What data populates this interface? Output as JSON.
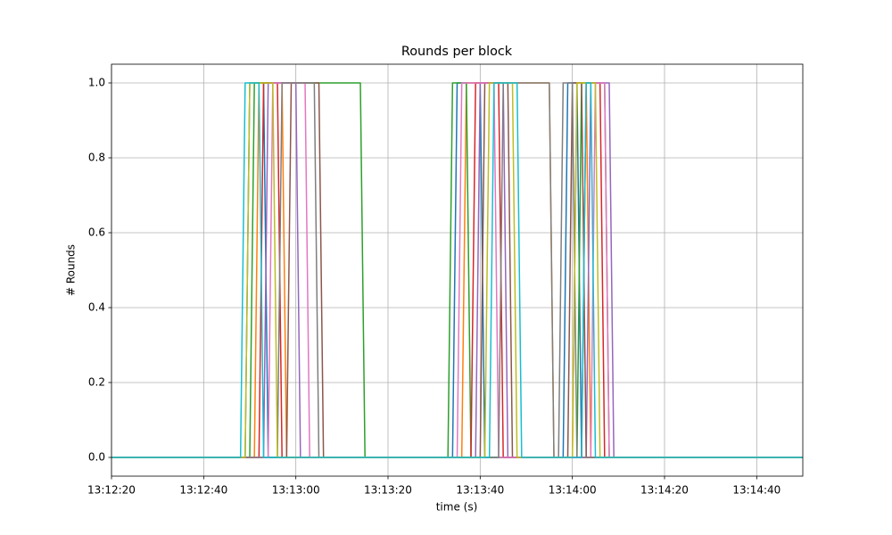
{
  "chart_data": {
    "type": "line",
    "title": "Rounds per block",
    "x_label": "time (s)",
    "y_label": "# Rounds",
    "xlim": [
      "13:12:20",
      "13:14:50"
    ],
    "xticks": [
      "13:12:20",
      "13:12:40",
      "13:13:00",
      "13:13:20",
      "13:13:40",
      "13:14:00",
      "13:14:20",
      "13:14:40"
    ],
    "ylim": [
      -0.05,
      1.05
    ],
    "yticks": [
      {
        "value": 0,
        "label": "0.0"
      },
      0.2,
      0.4,
      0.6,
      0.8,
      {
        "value": 1,
        "label": "1.0"
      }
    ],
    "grid": true,
    "series": [
      {
        "color": "#1f77b4",
        "x": [
          "13:12:20",
          "13:12:49",
          "13:12:50",
          "13:12:53",
          "13:12:54",
          "13:13:34",
          "13:13:35",
          "13:13:40",
          "13:13:41",
          "13:13:58",
          "13:13:59",
          "13:14:01",
          "13:14:02",
          "13:14:50"
        ],
        "values": [
          0,
          0,
          1,
          1,
          0,
          0,
          1,
          1,
          0,
          0,
          1,
          1,
          0,
          0
        ]
      },
      {
        "color": "#ff7f0e",
        "x": [
          "13:12:20",
          "13:12:51",
          "13:12:52",
          "13:12:57",
          "13:12:58",
          "13:13:36",
          "13:13:37",
          "13:13:55",
          "13:13:56",
          "13:14:00",
          "13:14:01",
          "13:14:03",
          "13:14:04",
          "13:14:50"
        ],
        "values": [
          0,
          0,
          1,
          1,
          0,
          0,
          1,
          1,
          0,
          0,
          1,
          1,
          0,
          0
        ]
      },
      {
        "color": "#2ca02c",
        "x": [
          "13:12:20",
          "13:12:50",
          "13:12:51",
          "13:13:14",
          "13:13:15",
          "13:13:33",
          "13:13:34",
          "13:13:37",
          "13:13:38",
          "13:14:01",
          "13:14:02",
          "13:14:07",
          "13:14:08",
          "13:14:50"
        ],
        "values": [
          0,
          0,
          1,
          1,
          0,
          0,
          1,
          1,
          0,
          0,
          1,
          1,
          0,
          0
        ]
      },
      {
        "color": "#d62728",
        "x": [
          "13:12:20",
          "13:12:52",
          "13:12:53",
          "13:12:56",
          "13:12:57",
          "13:13:38",
          "13:13:39",
          "13:13:44",
          "13:13:45",
          "13:14:02",
          "13:14:03",
          "13:14:06",
          "13:14:07",
          "13:14:50"
        ],
        "values": [
          0,
          0,
          1,
          1,
          0,
          0,
          1,
          1,
          0,
          0,
          1,
          1,
          0,
          0
        ]
      },
      {
        "color": "#9467bd",
        "x": [
          "13:12:20",
          "13:12:53",
          "13:12:54",
          "13:13:00",
          "13:13:01",
          "13:13:39",
          "13:13:40",
          "13:13:45",
          "13:13:46",
          "13:14:03",
          "13:14:04",
          "13:14:08",
          "13:14:09",
          "13:14:50"
        ],
        "values": [
          0,
          0,
          1,
          1,
          0,
          0,
          1,
          1,
          0,
          0,
          1,
          1,
          0,
          0
        ]
      },
      {
        "color": "#8c564b",
        "x": [
          "13:12:20",
          "13:12:58",
          "13:12:59",
          "13:13:05",
          "13:13:06",
          "13:13:40",
          "13:13:41",
          "13:13:46",
          "13:13:47",
          "13:13:59",
          "13:14:00",
          "13:14:02",
          "13:14:03",
          "13:14:50"
        ],
        "values": [
          0,
          0,
          1,
          1,
          0,
          0,
          1,
          1,
          0,
          0,
          1,
          1,
          0,
          0
        ]
      },
      {
        "color": "#e377c2",
        "x": [
          "13:12:20",
          "13:12:54",
          "13:12:55",
          "13:13:02",
          "13:13:03",
          "13:13:35",
          "13:13:36",
          "13:13:43",
          "13:13:44",
          "13:14:04",
          "13:14:05",
          "13:14:07",
          "13:14:08",
          "13:14:50"
        ],
        "values": [
          0,
          0,
          1,
          1,
          0,
          0,
          1,
          1,
          0,
          0,
          1,
          1,
          0,
          0
        ]
      },
      {
        "color": "#7f7f7f",
        "x": [
          "13:12:20",
          "13:12:56",
          "13:12:57",
          "13:13:04",
          "13:13:05",
          "13:13:44",
          "13:13:45",
          "13:13:55",
          "13:13:56",
          "13:13:57",
          "13:13:58",
          "13:14:00",
          "13:14:01",
          "13:14:50"
        ],
        "values": [
          0,
          0,
          1,
          1,
          0,
          0,
          1,
          1,
          0,
          0,
          1,
          1,
          0,
          0
        ]
      },
      {
        "color": "#bcbd22",
        "x": [
          "13:12:20",
          "13:12:49",
          "13:12:50",
          "13:12:55",
          "13:12:56",
          "13:13:41",
          "13:13:42",
          "13:13:47",
          "13:13:48",
          "13:14:00",
          "13:14:01",
          "13:14:05",
          "13:14:06",
          "13:14:50"
        ],
        "values": [
          0,
          0,
          1,
          1,
          0,
          0,
          1,
          1,
          0,
          0,
          1,
          1,
          0,
          0
        ]
      },
      {
        "color": "#17becf",
        "x": [
          "13:12:20",
          "13:12:48",
          "13:12:49",
          "13:12:52",
          "13:12:53",
          "13:13:42",
          "13:13:43",
          "13:13:48",
          "13:13:49",
          "13:14:02",
          "13:14:03",
          "13:14:04",
          "13:14:05",
          "13:14:50"
        ],
        "values": [
          0,
          0,
          1,
          1,
          0,
          0,
          1,
          1,
          0,
          0,
          1,
          1,
          0,
          0
        ]
      }
    ]
  }
}
